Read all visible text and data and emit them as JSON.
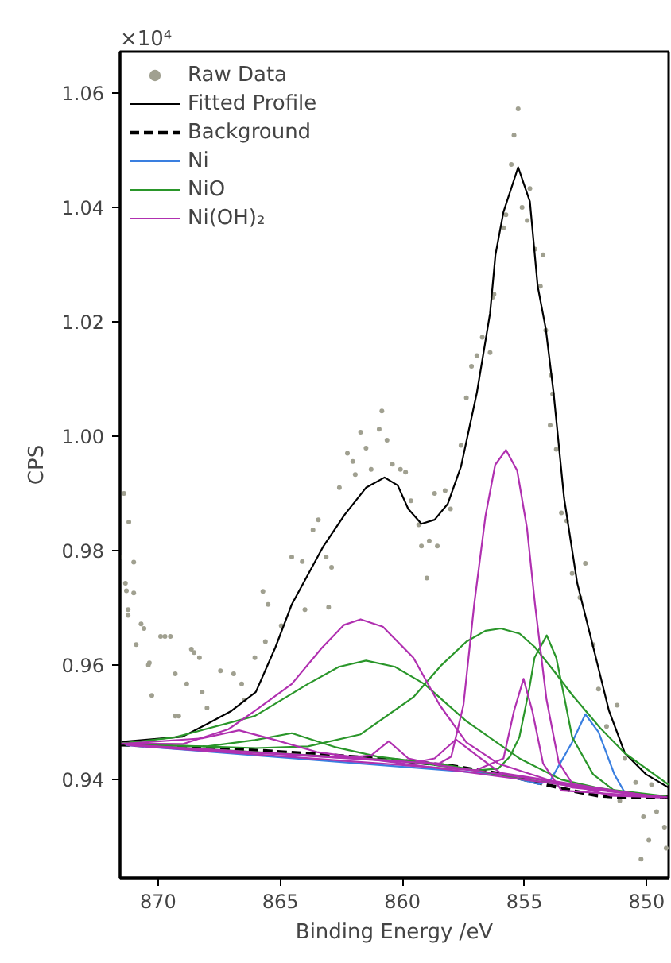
{
  "chart_data": {
    "type": "line",
    "xlabel": "Binding Energy /eV",
    "ylabel": "CPS",
    "annotations": [
      "×10⁴"
    ],
    "xlim": [
      871.56,
      849.1
    ],
    "ylim": [
      0.9228,
      1.0672
    ],
    "xticks": [
      870,
      865,
      860,
      855,
      850
    ],
    "yticks": [
      {
        "value": 0.94,
        "label": "0.94"
      },
      {
        "value": 0.96,
        "label": "0.96"
      },
      {
        "value": 0.98,
        "label": "0.98"
      },
      {
        "value": 1.0,
        "label": "1.00"
      },
      {
        "value": 1.02,
        "label": "1.02"
      },
      {
        "value": 1.04,
        "label": "1.04"
      },
      {
        "value": 1.06,
        "label": "1.06"
      }
    ],
    "grid": false,
    "legend": "top left",
    "series": [
      {
        "name": "Raw Data",
        "type": "scatter",
        "marker": "circle",
        "color": "#a0a090",
        "x": [
          871.4,
          871.2,
          871.0,
          871.3,
          871.56,
          871.34,
          871.0,
          871.23,
          870.7,
          870.9,
          870.4,
          869.9,
          869.5,
          870.26,
          869.16,
          868.64,
          868.31,
          868.83,
          868.0,
          871.23,
          870.58,
          870.36,
          869.72,
          869.3,
          868.53,
          868.2,
          867.45,
          866.91,
          866.58,
          866.04,
          865.61,
          865.5,
          864.96,
          863.99,
          863.02,
          869.3,
          866.47,
          865.71,
          864.53,
          864.1,
          863.66,
          863.44,
          863.12,
          862.9,
          862.58,
          862.25,
          862.03,
          861.93,
          861.71,
          861.49,
          861.28,
          860.95,
          860.84,
          860.63,
          860.41,
          860.08,
          859.87,
          859.65,
          859.33,
          859.22,
          859.0,
          858.9,
          858.57,
          858.68,
          858.25,
          858.03,
          857.6,
          857.38,
          857.17,
          856.95,
          856.73,
          856.41,
          856.3,
          856.25,
          855.86,
          855.76,
          855.54,
          855.43,
          855.26,
          855.1,
          854.89,
          854.78,
          854.57,
          854.24,
          854.35,
          854.13,
          853.92,
          853.85,
          853.95,
          853.7,
          853.49,
          853.27,
          853.05,
          852.51,
          852.73,
          852.19,
          851.97,
          851.64,
          851.21,
          850.89,
          850.45,
          851.1,
          850.13,
          849.91,
          850.23,
          849.59,
          849.27,
          849.2,
          849.8
        ],
        "values": [
          0.99,
          0.985,
          0.978,
          0.973,
          0.9789,
          0.9743,
          0.9726,
          0.9697,
          0.9672,
          0.9636,
          0.96,
          0.965,
          0.965,
          0.9547,
          0.9511,
          0.9628,
          0.9613,
          0.9567,
          0.9525,
          0.9687,
          0.9664,
          0.9604,
          0.965,
          0.9585,
          0.9622,
          0.9553,
          0.959,
          0.9585,
          0.9567,
          0.9613,
          0.9641,
          0.9706,
          0.9669,
          0.9697,
          0.9701,
          0.9511,
          0.9539,
          0.9729,
          0.9789,
          0.9781,
          0.9836,
          0.9854,
          0.9789,
          0.9771,
          0.991,
          0.997,
          0.9956,
          0.9933,
          1.0007,
          0.9979,
          0.9942,
          1.0012,
          1.0044,
          0.9993,
          0.9951,
          0.9942,
          0.9937,
          0.9887,
          0.9845,
          0.9808,
          0.9752,
          0.9817,
          0.9808,
          0.99,
          0.9905,
          0.9873,
          0.9984,
          1.0067,
          1.0122,
          1.0141,
          1.0173,
          1.0146,
          1.0243,
          1.0248,
          1.0364,
          1.0387,
          1.0475,
          1.0526,
          1.0572,
          1.04,
          1.0377,
          1.0433,
          1.0327,
          1.0317,
          1.0262,
          1.0185,
          1.0106,
          1.0074,
          1.0019,
          0.9977,
          0.9866,
          0.9852,
          0.976,
          0.9778,
          0.9718,
          0.9636,
          0.9558,
          0.9493,
          0.953,
          0.9437,
          0.9395,
          0.9363,
          0.9335,
          0.9294,
          0.9261,
          0.9344,
          0.9317,
          0.928,
          0.9391
        ]
      },
      {
        "name": "Fitted Profile",
        "color": "#000000",
        "x": [
          871.5,
          869,
          868,
          867,
          866,
          865.2,
          864.53,
          863.23,
          862.36,
          861.49,
          860.73,
          860.19,
          859.76,
          859.22,
          858.68,
          858.14,
          857.6,
          856.95,
          856.41,
          856.19,
          855.86,
          855.26,
          854.78,
          854.46,
          854.13,
          853.81,
          853.38,
          852.84,
          852.19,
          851.54,
          850.89,
          850.02,
          849.1
        ],
        "values": [
          0.9466,
          0.9475,
          0.9497,
          0.952,
          0.9553,
          0.9631,
          0.9706,
          0.9808,
          0.9863,
          0.991,
          0.9928,
          0.9914,
          0.9873,
          0.9847,
          0.9854,
          0.9882,
          0.9947,
          1.0076,
          1.0215,
          1.0317,
          1.0392,
          1.047,
          1.041,
          1.0262,
          1.0188,
          1.0076,
          0.9892,
          0.9743,
          0.9632,
          0.952,
          0.9446,
          0.9409,
          0.9386
        ]
      },
      {
        "name": "Background",
        "line_style": "dashed",
        "color": "#000000",
        "x": [
          871.56,
          869,
          866,
          863,
          860,
          858,
          856,
          855,
          854,
          853,
          852,
          851,
          849.1
        ],
        "values": [
          0.9461,
          0.9457,
          0.9451,
          0.9443,
          0.9433,
          0.9424,
          0.941,
          0.94,
          0.939,
          0.938,
          0.9372,
          0.9369,
          0.9369
        ]
      },
      {
        "name": "Ni",
        "color": "#3a7fe0",
        "x": [
          871.3,
          856,
          854.4,
          853.92,
          853.05,
          852.51,
          851.97,
          851.32,
          850.89,
          849.3
        ],
        "values": [
          0.946,
          0.9409,
          0.9392,
          0.94,
          0.9465,
          0.9514,
          0.9483,
          0.9409,
          0.9377,
          0.937
        ]
      },
      {
        "name": "NiO",
        "color": "#2a962a",
        "x": [
          871.5,
          869.3,
          866.04,
          863.87,
          862.6,
          861.49,
          860.3,
          859.1,
          857.38,
          855.21,
          853.5,
          851.97,
          849.2
        ],
        "values": [
          0.9463,
          0.9474,
          0.9511,
          0.9567,
          0.9597,
          0.9608,
          0.9597,
          0.9567,
          0.9502,
          0.9437,
          0.94,
          0.9385,
          0.9371
        ]
      },
      {
        "color": "#2a962a",
        "x": [
          871.4,
          866,
          863.87,
          861.71,
          859.55,
          858.4,
          857.38,
          856.6,
          855.97,
          855.2,
          854.59,
          853.8,
          853.05,
          851.9,
          850.89,
          849.1
        ],
        "values": [
          0.9462,
          0.9455,
          0.9458,
          0.9479,
          0.9544,
          0.96,
          0.9641,
          0.966,
          0.9664,
          0.9655,
          0.9632,
          0.959,
          0.9548,
          0.949,
          0.9446,
          0.9391
        ]
      },
      {
        "color": "#2a962a",
        "x": [
          871.2,
          860,
          857,
          856.08,
          855.6,
          855.21,
          854.8,
          854.59,
          854.09,
          853.7,
          853.4,
          853.05,
          852.19,
          851.3,
          849.4
        ],
        "values": [
          0.9461,
          0.9433,
          0.9416,
          0.9419,
          0.944,
          0.9474,
          0.956,
          0.9613,
          0.9652,
          0.9613,
          0.955,
          0.9474,
          0.9409,
          0.938,
          0.937
        ]
      },
      {
        "color": "#2a962a",
        "x": [
          871.1,
          868,
          866.04,
          864.53,
          862.78,
          861,
          858,
          855,
          849.5
        ],
        "values": [
          0.9461,
          0.9458,
          0.9469,
          0.9481,
          0.9457,
          0.944,
          0.9424,
          0.94,
          0.9369
        ]
      },
      {
        "name": "Ni(OH)₂",
        "color": "#b030b0",
        "x": [
          871.45,
          869,
          867.12,
          866.04,
          864.53,
          863.3,
          862.4,
          861.71,
          860.8,
          859.55,
          858.47,
          857.38,
          856.08,
          853.05,
          849.15
        ],
        "values": [
          0.9463,
          0.9462,
          0.9488,
          0.952,
          0.9567,
          0.963,
          0.967,
          0.968,
          0.9667,
          0.9613,
          0.953,
          0.9465,
          0.9428,
          0.9386,
          0.9369
        ]
      },
      {
        "color": "#b030b0",
        "x": [
          871.35,
          862,
          859.5,
          858.5,
          858,
          857.5,
          857.06,
          856.6,
          856.2,
          855.76,
          855.3,
          854.9,
          854.57,
          854.1,
          853.6,
          853,
          851.5,
          849.25
        ],
        "values": [
          0.9461,
          0.9438,
          0.943,
          0.9428,
          0.944,
          0.953,
          0.9706,
          0.986,
          0.995,
          0.9976,
          0.994,
          0.984,
          0.9706,
          0.954,
          0.943,
          0.939,
          0.9372,
          0.9369
        ]
      },
      {
        "color": "#b030b0",
        "x": [
          871.25,
          857,
          855.86,
          855.43,
          855.04,
          854.68,
          854.24,
          853.49,
          849.35
        ],
        "values": [
          0.946,
          0.9416,
          0.9437,
          0.952,
          0.9576,
          0.952,
          0.9428,
          0.9381,
          0.9369
        ]
      },
      {
        "color": "#b030b0",
        "x": [
          871.15,
          862.5,
          861.28,
          860.56,
          859.76,
          858.5,
          849.45
        ],
        "values": [
          0.946,
          0.9438,
          0.9442,
          0.9467,
          0.9437,
          0.9425,
          0.9369
        ]
      },
      {
        "color": "#b030b0",
        "x": [
          871.05,
          859.5,
          858.68,
          857.81,
          856.95,
          856,
          849.55
        ],
        "values": [
          0.946,
          0.943,
          0.9437,
          0.947,
          0.9442,
          0.9412,
          0.9369
        ]
      },
      {
        "color": "#b030b0",
        "x": [
          871.55,
          868.2,
          866.69,
          865.2,
          863.5,
          849.6
        ],
        "values": [
          0.9462,
          0.9472,
          0.9486,
          0.9469,
          0.9448,
          0.9369
        ]
      }
    ]
  }
}
